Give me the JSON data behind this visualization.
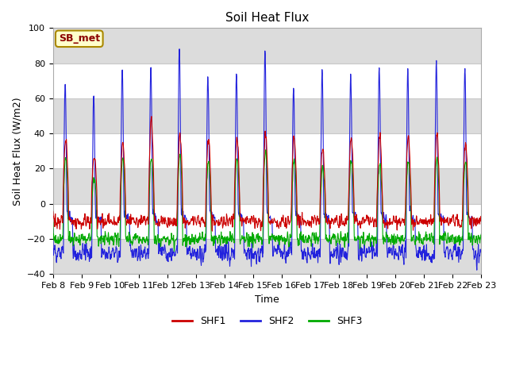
{
  "title": "Soil Heat Flux",
  "ylabel": "Soil Heat Flux (W/m2)",
  "xlabel": "Time",
  "ylim": [
    -40,
    100
  ],
  "colors": {
    "SHF1": "#cc0000",
    "SHF2": "#2222dd",
    "SHF3": "#00aa00"
  },
  "legend_label": "SB_met",
  "legend_label_color": "#8B0000",
  "legend_label_bg": "#ffffcc",
  "legend_label_border": "#aa8800",
  "background_color": "#ffffff",
  "plot_bg_color": "#ffffff",
  "band_color": "#dcdcdc",
  "grid_color": "#c8c8c8",
  "xtick_labels": [
    "Feb 8",
    "Feb 9",
    "Feb 10",
    "Feb 11",
    "Feb 12",
    "Feb 13",
    "Feb 14",
    "Feb 15",
    "Feb 16",
    "Feb 17",
    "Feb 18",
    "Feb 19",
    "Feb 20",
    "Feb 21",
    "Feb 22",
    "Feb 23"
  ],
  "linewidth": 0.8,
  "n_days": 15,
  "n_per_day": 96
}
